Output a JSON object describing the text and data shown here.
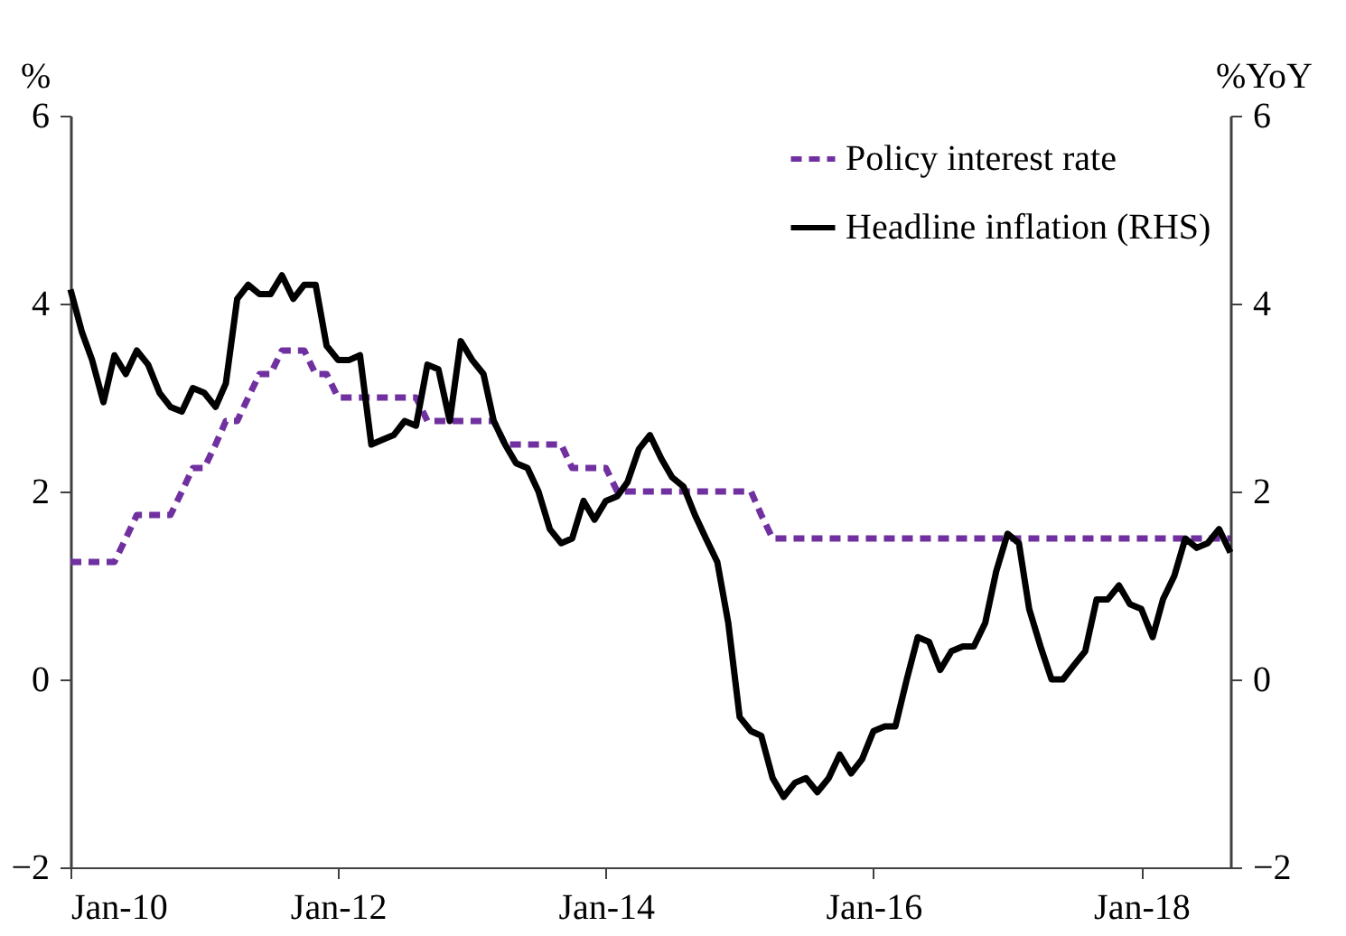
{
  "chart_data": {
    "type": "line",
    "ylabel": "%",
    "y2label": "%YoY",
    "x": [
      "2010-01",
      "2010-02",
      "2010-03",
      "2010-04",
      "2010-05",
      "2010-06",
      "2010-07",
      "2010-08",
      "2010-09",
      "2010-10",
      "2010-11",
      "2010-12",
      "2011-01",
      "2011-02",
      "2011-03",
      "2011-04",
      "2011-05",
      "2011-06",
      "2011-07",
      "2011-08",
      "2011-09",
      "2011-10",
      "2011-11",
      "2011-12",
      "2012-01",
      "2012-02",
      "2012-03",
      "2012-04",
      "2012-05",
      "2012-06",
      "2012-07",
      "2012-08",
      "2012-09",
      "2012-10",
      "2012-11",
      "2012-12",
      "2013-01",
      "2013-02",
      "2013-03",
      "2013-04",
      "2013-05",
      "2013-06",
      "2013-07",
      "2013-08",
      "2013-09",
      "2013-10",
      "2013-11",
      "2013-12",
      "2014-01",
      "2014-02",
      "2014-03",
      "2014-04",
      "2014-05",
      "2014-06",
      "2014-07",
      "2014-08",
      "2014-09",
      "2014-10",
      "2014-11",
      "2014-12",
      "2015-01",
      "2015-02",
      "2015-03",
      "2015-04",
      "2015-05",
      "2015-06",
      "2015-07",
      "2015-08",
      "2015-09",
      "2015-10",
      "2015-11",
      "2015-12",
      "2016-01",
      "2016-02",
      "2016-03",
      "2016-04",
      "2016-05",
      "2016-06",
      "2016-07",
      "2016-08",
      "2016-09",
      "2016-10",
      "2016-11",
      "2016-12",
      "2017-01",
      "2017-02",
      "2017-03",
      "2017-04",
      "2017-05",
      "2017-06",
      "2017-07",
      "2017-08",
      "2017-09",
      "2017-10",
      "2017-11",
      "2017-12",
      "2018-01",
      "2018-02",
      "2018-03",
      "2018-04",
      "2018-05",
      "2018-06",
      "2018-07",
      "2018-08",
      "2018-09"
    ],
    "xlim": [
      "2010-01",
      "2018-09"
    ],
    "xticks": [
      {
        "value": "2010-01",
        "label": "Jan-10"
      },
      {
        "value": "2012-01",
        "label": "Jan-12"
      },
      {
        "value": "2014-01",
        "label": "Jan-14"
      },
      {
        "value": "2016-01",
        "label": "Jan-16"
      },
      {
        "value": "2018-01",
        "label": "Jan-18"
      }
    ],
    "ylim": [
      -2,
      6
    ],
    "yticks": [
      -2,
      0,
      2,
      4,
      6
    ],
    "y2lim": [
      -2,
      6
    ],
    "y2ticks": [
      -2,
      0,
      2,
      4,
      6
    ],
    "grid": false,
    "legend": "top right",
    "marker": "none",
    "series": [
      {
        "name": "Policy interest rate",
        "color": "#7030a0",
        "line_style": "dashed",
        "values": [
          1.25,
          1.25,
          1.25,
          1.25,
          1.25,
          1.5,
          1.75,
          1.75,
          1.75,
          1.75,
          2.0,
          2.25,
          2.25,
          2.5,
          2.75,
          2.75,
          3.0,
          3.25,
          3.25,
          3.5,
          3.5,
          3.5,
          3.25,
          3.25,
          3.0,
          3.0,
          3.0,
          3.0,
          3.0,
          3.0,
          3.0,
          3.0,
          2.75,
          2.75,
          2.75,
          2.75,
          2.75,
          2.75,
          2.75,
          2.5,
          2.5,
          2.5,
          2.5,
          2.5,
          2.5,
          2.25,
          2.25,
          2.25,
          2.25,
          2.0,
          2.0,
          2.0,
          2.0,
          2.0,
          2.0,
          2.0,
          2.0,
          2.0,
          2.0,
          2.0,
          2.0,
          2.0,
          1.75,
          1.5,
          1.5,
          1.5,
          1.5,
          1.5,
          1.5,
          1.5,
          1.5,
          1.5,
          1.5,
          1.5,
          1.5,
          1.5,
          1.5,
          1.5,
          1.5,
          1.5,
          1.5,
          1.5,
          1.5,
          1.5,
          1.5,
          1.5,
          1.5,
          1.5,
          1.5,
          1.5,
          1.5,
          1.5,
          1.5,
          1.5,
          1.5,
          1.5,
          1.5,
          1.5,
          1.5,
          1.5,
          1.5,
          1.5,
          1.5,
          1.5,
          1.5
        ]
      },
      {
        "name": "Headline inflation (RHS)",
        "color": "#000000",
        "line_style": "solid",
        "axis": "y2",
        "values": [
          4.15,
          3.7,
          3.4,
          2.95,
          3.45,
          3.25,
          3.5,
          3.35,
          3.05,
          2.9,
          2.85,
          3.1,
          3.05,
          2.9,
          3.15,
          4.05,
          4.2,
          4.1,
          4.1,
          4.3,
          4.05,
          4.2,
          4.2,
          3.55,
          3.4,
          3.4,
          3.45,
          2.5,
          2.55,
          2.6,
          2.75,
          2.7,
          3.35,
          3.3,
          2.75,
          3.6,
          3.4,
          3.25,
          2.75,
          2.5,
          2.3,
          2.25,
          2.0,
          1.6,
          1.45,
          1.5,
          1.9,
          1.7,
          1.9,
          1.95,
          2.1,
          2.45,
          2.6,
          2.35,
          2.15,
          2.05,
          1.75,
          1.5,
          1.25,
          0.6,
          -0.4,
          -0.55,
          -0.6,
          -1.05,
          -1.25,
          -1.1,
          -1.05,
          -1.2,
          -1.05,
          -0.8,
          -1.0,
          -0.85,
          -0.55,
          -0.5,
          -0.5,
          0.0,
          0.45,
          0.4,
          0.1,
          0.3,
          0.35,
          0.35,
          0.6,
          1.15,
          1.55,
          1.45,
          0.75,
          0.35,
          0.0,
          0.0,
          0.15,
          0.3,
          0.85,
          0.85,
          1.0,
          0.8,
          0.75,
          0.45,
          0.85,
          1.1,
          1.5,
          1.4,
          1.45,
          1.6,
          1.35
        ]
      }
    ]
  }
}
